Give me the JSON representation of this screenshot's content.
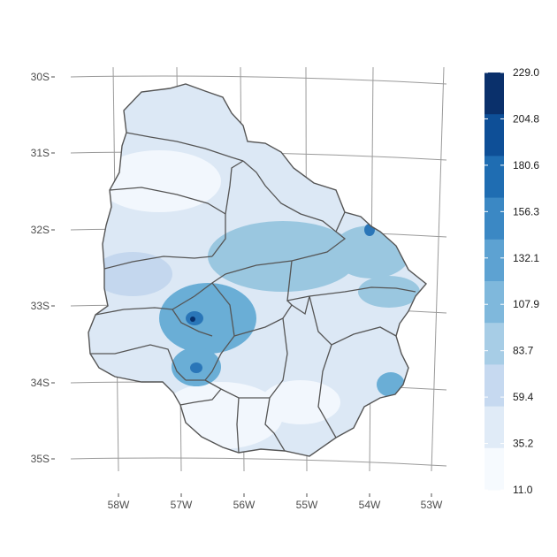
{
  "map": {
    "lat_labels": [
      "30S",
      "31S",
      "32S",
      "33S",
      "34S",
      "35S"
    ],
    "lon_labels": [
      "58W",
      "57W",
      "56W",
      "55W",
      "54W",
      "53W"
    ],
    "fill_colors": {
      "base": "#dce8f5",
      "low": "#f2f7fd",
      "mid": "#c4d7ee",
      "high": "#9ac7e0",
      "higher": "#6aaed6",
      "peak": "#2a76b8",
      "max": "#08306b"
    },
    "outline_color": "#555555",
    "graticule_color": "#9a9a9a"
  },
  "legend": {
    "labels": [
      "229.0",
      "204.8",
      "180.6",
      "156.3",
      "132.1",
      "107.9",
      "83.7",
      "59.4",
      "35.2",
      "11.0"
    ],
    "colors": [
      "#0a306b",
      "#0e4f97",
      "#1f6db2",
      "#3b88c4",
      "#5da2d2",
      "#7fb8dc",
      "#a7cde6",
      "#c6d9f0",
      "#e0ebf7",
      "#f6fafe"
    ]
  }
}
